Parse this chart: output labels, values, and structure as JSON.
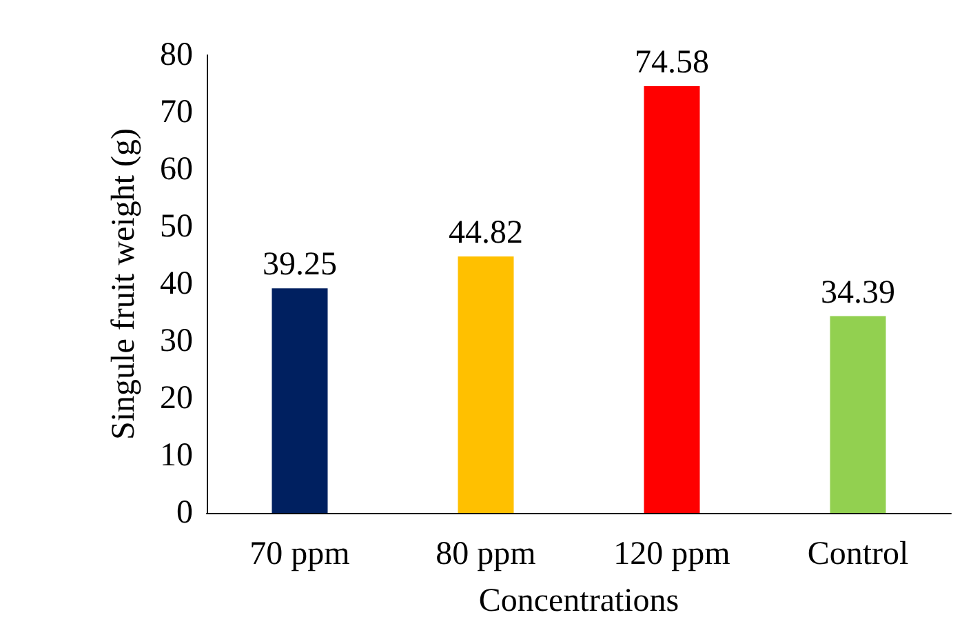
{
  "chart_data": {
    "type": "bar",
    "xlabel": "Concentrations",
    "ylabel": "Singule fruit weight (g)",
    "categories": [
      "70 ppm",
      "80 ppm",
      "120 ppm",
      "Control"
    ],
    "values": [
      39.25,
      44.82,
      74.58,
      34.39
    ],
    "colors": [
      "#002060",
      "#ffc000",
      "#ff0000",
      "#92d050"
    ],
    "ylim": [
      0,
      80
    ],
    "yticks": [
      0,
      10,
      20,
      30,
      40,
      50,
      60,
      70,
      80
    ],
    "grid": false,
    "data_labels": true
  }
}
